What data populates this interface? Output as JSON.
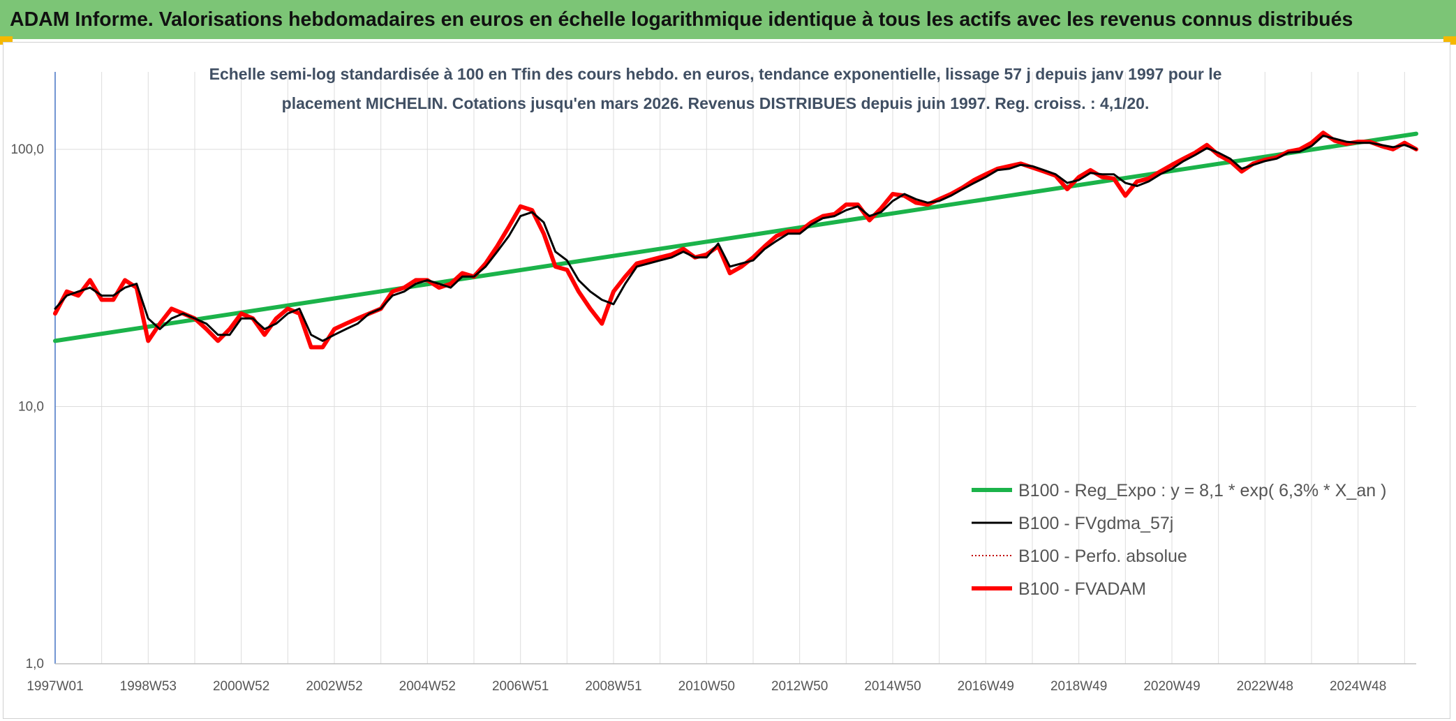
{
  "header": {
    "title": "ADAM Informe. Valorisations hebdomadaires en euros en échelle logarithmique identique à tous les actifs avec les revenus connus distribués",
    "background_color": "#7cc576",
    "corner_color": "#f5b800"
  },
  "chart_data": {
    "type": "line",
    "title": "Echelle semi-log standardisée à 100 en Tfin des cours hebdo. en euros, tendance exponentielle, lissage 57 j depuis janv 1997 pour le placement MICHELIN. Cotations jusqu'en mars 2026. Revenus DISTRIBUES depuis juin 1997. Reg. croiss. : 4,1/20.",
    "title_lines": [
      "Echelle semi-log standardisée à 100 en Tfin des cours hebdo. en euros, tendance exponentielle, lissage 57 j depuis janv 1997 pour le",
      "placement MICHELIN. Cotations jusqu'en mars 2026. Revenus DISTRIBUES depuis juin 1997. Reg. croiss. : 4,1/20."
    ],
    "y_scale": "log",
    "ylim": [
      1,
      200
    ],
    "xlim": [
      1997.0,
      2026.25
    ],
    "y_ticks": [
      {
        "value": 1,
        "label": "1,0"
      },
      {
        "value": 10,
        "label": "10,0"
      },
      {
        "value": 100,
        "label": "100,0"
      }
    ],
    "x_ticks": [
      {
        "value": 1997.0,
        "label": "1997W01"
      },
      {
        "value": 1999.0,
        "label": "1998W53"
      },
      {
        "value": 2001.0,
        "label": "2000W52"
      },
      {
        "value": 2003.0,
        "label": "2002W52"
      },
      {
        "value": 2005.0,
        "label": "2004W52"
      },
      {
        "value": 2007.0,
        "label": "2006W51"
      },
      {
        "value": 2009.0,
        "label": "2008W51"
      },
      {
        "value": 2011.0,
        "label": "2010W50"
      },
      {
        "value": 2013.0,
        "label": "2012W50"
      },
      {
        "value": 2015.0,
        "label": "2014W50"
      },
      {
        "value": 2017.0,
        "label": "2016W49"
      },
      {
        "value": 2019.0,
        "label": "2018W49"
      },
      {
        "value": 2021.0,
        "label": "2020W49"
      },
      {
        "value": 2023.0,
        "label": "2022W48"
      },
      {
        "value": 2025.0,
        "label": "2024W48"
      }
    ],
    "x_grid": [
      1997,
      1998,
      1999,
      2000,
      2001,
      2002,
      2003,
      2004,
      2005,
      2006,
      2007,
      2008,
      2009,
      2010,
      2011,
      2012,
      2013,
      2014,
      2015,
      2016,
      2017,
      2018,
      2019,
      2020,
      2021,
      2022,
      2023,
      2024,
      2025,
      2026
    ],
    "grid": true,
    "legend_position": "bottom-right",
    "series": [
      {
        "name": "B100 - Reg_Expo : y = 8,1 * exp( 6,3% *  X_an )",
        "color": "#1bb34a",
        "style": "solid-thick",
        "x": [
          1997.0,
          2026.25
        ],
        "y": [
          18.0,
          115.0
        ]
      },
      {
        "name": "B100 - FVgdma_57j",
        "color": "#000000",
        "style": "solid",
        "x": [
          1997.0,
          1997.25,
          1997.5,
          1997.75,
          1998.0,
          1998.25,
          1998.5,
          1998.75,
          1999.0,
          1999.25,
          1999.5,
          1999.75,
          2000.0,
          2000.25,
          2000.5,
          2000.75,
          2001.0,
          2001.25,
          2001.5,
          2001.75,
          2002.0,
          2002.25,
          2002.5,
          2002.75,
          2003.0,
          2003.25,
          2003.5,
          2003.75,
          2004.0,
          2004.25,
          2004.5,
          2004.75,
          2005.0,
          2005.25,
          2005.5,
          2005.75,
          2006.0,
          2006.25,
          2006.5,
          2006.75,
          2007.0,
          2007.25,
          2007.5,
          2007.75,
          2008.0,
          2008.25,
          2008.5,
          2008.75,
          2009.0,
          2009.25,
          2009.5,
          2009.75,
          2010.0,
          2010.25,
          2010.5,
          2010.75,
          2011.0,
          2011.25,
          2011.5,
          2011.75,
          2012.0,
          2012.25,
          2012.5,
          2012.75,
          2013.0,
          2013.25,
          2013.5,
          2013.75,
          2014.0,
          2014.25,
          2014.5,
          2014.75,
          2015.0,
          2015.25,
          2015.5,
          2015.75,
          2016.0,
          2016.25,
          2016.5,
          2016.75,
          2017.0,
          2017.25,
          2017.5,
          2017.75,
          2018.0,
          2018.25,
          2018.5,
          2018.75,
          2019.0,
          2019.25,
          2019.5,
          2019.75,
          2020.0,
          2020.25,
          2020.5,
          2020.75,
          2021.0,
          2021.25,
          2021.5,
          2021.75,
          2022.0,
          2022.25,
          2022.5,
          2022.75,
          2023.0,
          2023.25,
          2023.5,
          2023.75,
          2024.0,
          2024.25,
          2024.5,
          2024.75,
          2025.0,
          2025.25,
          2025.5,
          2025.75,
          2026.0,
          2026.25
        ],
        "y": [
          24,
          27,
          28,
          29,
          27,
          27,
          29,
          30,
          22,
          20,
          22,
          23,
          22,
          21,
          19,
          19,
          22,
          22,
          20,
          21,
          23,
          24,
          19,
          18,
          19,
          20,
          21,
          23,
          24,
          27,
          28,
          30,
          31,
          30,
          29,
          32,
          32,
          35,
          40,
          46,
          55,
          57,
          52,
          40,
          37,
          31,
          28,
          26,
          25,
          30,
          35,
          36,
          37,
          38,
          40,
          38,
          38,
          43,
          35,
          36,
          37,
          41,
          44,
          47,
          47,
          51,
          54,
          55,
          58,
          60,
          55,
          57,
          63,
          67,
          64,
          62,
          63,
          66,
          70,
          74,
          78,
          83,
          84,
          87,
          86,
          83,
          80,
          74,
          76,
          81,
          80,
          80,
          74,
          72,
          75,
          80,
          84,
          90,
          95,
          101,
          97,
          92,
          84,
          87,
          90,
          92,
          97,
          98,
          103,
          113,
          110,
          107,
          106,
          106,
          104,
          102,
          104,
          100
        ]
      },
      {
        "name": "B100 - Perfo. absolue",
        "color": "#c00000",
        "style": "dotted",
        "x": [],
        "y": []
      },
      {
        "name": "B100 - FVADAM",
        "color": "#ff0000",
        "style": "solid-thick",
        "x": [
          1997.0,
          1997.25,
          1997.5,
          1997.75,
          1998.0,
          1998.25,
          1998.5,
          1998.75,
          1999.0,
          1999.25,
          1999.5,
          1999.75,
          2000.0,
          2000.25,
          2000.5,
          2000.75,
          2001.0,
          2001.25,
          2001.5,
          2001.75,
          2002.0,
          2002.25,
          2002.5,
          2002.75,
          2003.0,
          2003.25,
          2003.5,
          2003.75,
          2004.0,
          2004.25,
          2004.5,
          2004.75,
          2005.0,
          2005.25,
          2005.5,
          2005.75,
          2006.0,
          2006.25,
          2006.5,
          2006.75,
          2007.0,
          2007.25,
          2007.5,
          2007.75,
          2008.0,
          2008.25,
          2008.5,
          2008.75,
          2009.0,
          2009.25,
          2009.5,
          2009.75,
          2010.0,
          2010.25,
          2010.5,
          2010.75,
          2011.0,
          2011.25,
          2011.5,
          2011.75,
          2012.0,
          2012.25,
          2012.5,
          2012.75,
          2013.0,
          2013.25,
          2013.5,
          2013.75,
          2014.0,
          2014.25,
          2014.5,
          2014.75,
          2015.0,
          2015.25,
          2015.5,
          2015.75,
          2016.0,
          2016.25,
          2016.5,
          2016.75,
          2017.0,
          2017.25,
          2017.5,
          2017.75,
          2018.0,
          2018.25,
          2018.5,
          2018.75,
          2019.0,
          2019.25,
          2019.5,
          2019.75,
          2020.0,
          2020.25,
          2020.5,
          2020.75,
          2021.0,
          2021.25,
          2021.5,
          2021.75,
          2022.0,
          2022.25,
          2022.5,
          2022.75,
          2023.0,
          2023.25,
          2023.5,
          2023.75,
          2024.0,
          2024.25,
          2024.5,
          2024.75,
          2025.0,
          2025.25,
          2025.5,
          2025.75,
          2026.0,
          2026.25
        ],
        "y": [
          23,
          28,
          27,
          31,
          26,
          26,
          31,
          29,
          18,
          21,
          24,
          23,
          22,
          20,
          18,
          20,
          23,
          22,
          19,
          22,
          24,
          23,
          17,
          17,
          20,
          21,
          22,
          23,
          24,
          28,
          29,
          31,
          31,
          29,
          30,
          33,
          32,
          36,
          42,
          50,
          60,
          58,
          47,
          35,
          34,
          28,
          24,
          21,
          28,
          32,
          36,
          37,
          38,
          39,
          41,
          38,
          39,
          42,
          33,
          35,
          38,
          42,
          46,
          48,
          48,
          52,
          55,
          56,
          61,
          61,
          53,
          59,
          67,
          66,
          62,
          61,
          64,
          67,
          71,
          76,
          80,
          84,
          86,
          88,
          85,
          82,
          79,
          70,
          78,
          83,
          78,
          77,
          66,
          75,
          77,
          82,
          87,
          92,
          97,
          104,
          95,
          90,
          82,
          88,
          91,
          93,
          98,
          100,
          106,
          116,
          108,
          105,
          107,
          107,
          103,
          100,
          106,
          100
        ]
      }
    ]
  }
}
